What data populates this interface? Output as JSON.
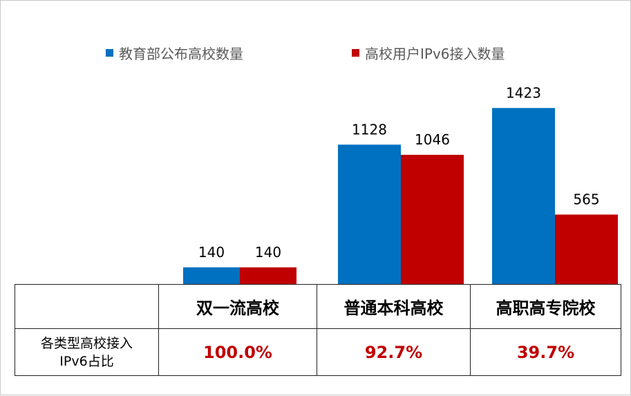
{
  "chart_data": {
    "type": "bar",
    "categories": [
      "双一流高校",
      "普通本科高校",
      "高职高专院校"
    ],
    "series": [
      {
        "name": "教育部公布高校数量",
        "values": [
          140,
          1128,
          1423
        ],
        "color": "#0070c0"
      },
      {
        "name": "高校用户IPv6接入数量",
        "values": [
          140,
          1046,
          565
        ],
        "color": "#c00000"
      }
    ],
    "data_labels": [
      [
        "140",
        "1128",
        "1423"
      ],
      [
        "140",
        "1046",
        "565"
      ]
    ],
    "legend_position": "top",
    "grid": false,
    "ylim": [
      0,
      1600
    ]
  },
  "table": {
    "row_label_line1": "各类型高校接入",
    "row_label_line2": "IPv6占比",
    "percentages": [
      "100.0%",
      "92.7%",
      "39.7%"
    ],
    "percent_color": "#c00000"
  }
}
